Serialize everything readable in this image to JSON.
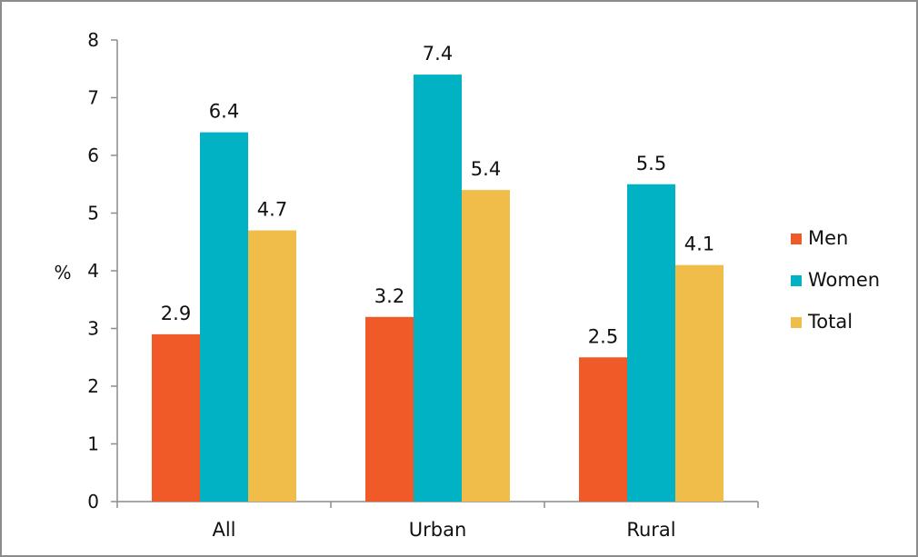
{
  "chart_data": {
    "type": "bar",
    "title": "",
    "xlabel": "",
    "ylabel": "%",
    "ylim": [
      0,
      8
    ],
    "yticks": [
      0,
      1,
      2,
      3,
      4,
      5,
      6,
      7,
      8
    ],
    "grid": false,
    "legend_position": "right",
    "categories": [
      "All",
      "Urban",
      "Rural"
    ],
    "series": [
      {
        "name": "Men",
        "color": "#f05a28",
        "values": [
          2.9,
          3.2,
          2.5
        ]
      },
      {
        "name": "Women",
        "color": "#00b2c3",
        "values": [
          6.4,
          7.4,
          5.5
        ]
      },
      {
        "name": "Total",
        "color": "#f0bd4a",
        "values": [
          4.7,
          5.4,
          4.1
        ]
      }
    ]
  }
}
